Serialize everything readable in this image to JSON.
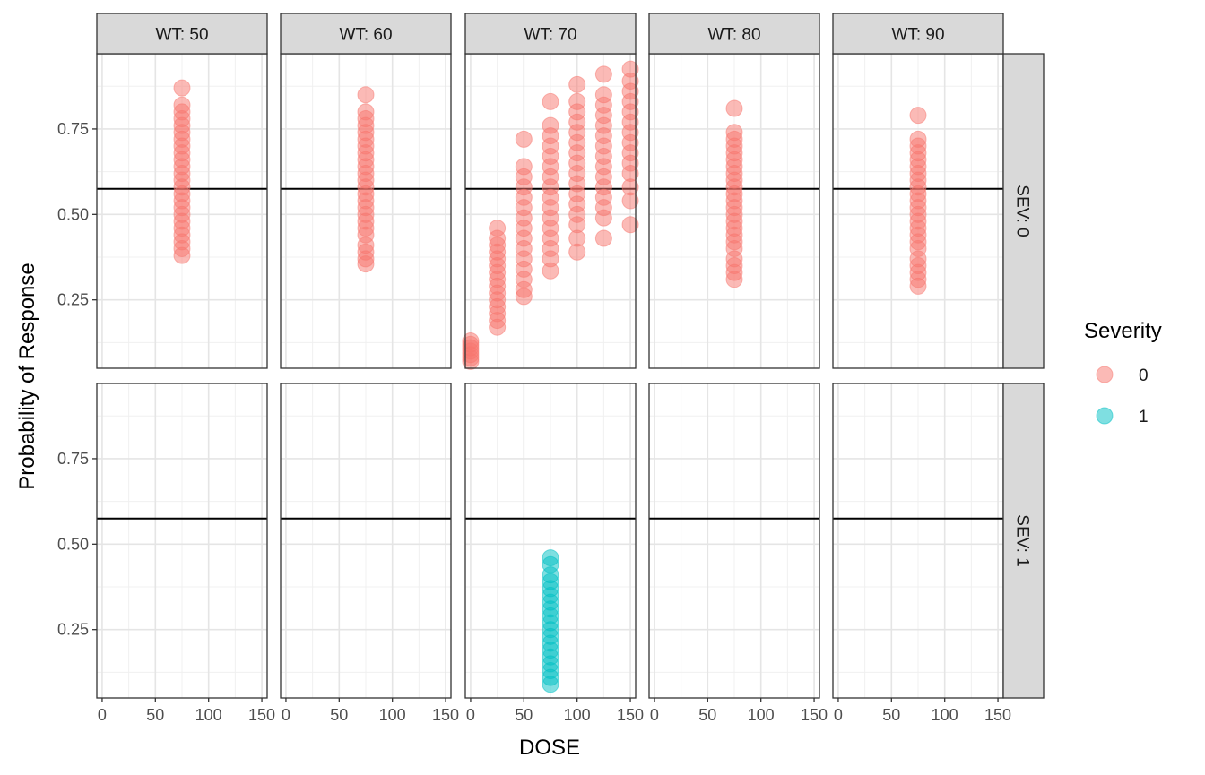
{
  "chart_data": {
    "type": "scatter",
    "xlabel": "DOSE",
    "ylabel": "Probability of Response",
    "xlim": [
      -5,
      155
    ],
    "ylim": [
      0.05,
      0.97
    ],
    "x_ticks": [
      0,
      50,
      100,
      150
    ],
    "x_tick_labels": [
      "0",
      "50",
      "100",
      "150"
    ],
    "y_ticks": [
      0.25,
      0.5,
      0.75
    ],
    "y_tick_labels": [
      "0.25",
      "0.50",
      "0.75"
    ],
    "reference_line_y": 0.575,
    "grid": true,
    "facet_cols": [
      "WT: 50",
      "WT: 60",
      "WT: 70",
      "WT: 80",
      "WT: 90"
    ],
    "facet_rows": [
      "SEV: 0",
      "SEV: 1"
    ],
    "legend": {
      "title": "Severity",
      "position": "right",
      "items": [
        {
          "label": "0",
          "color": "#F8766D"
        },
        {
          "label": "1",
          "color": "#00BFC4"
        }
      ]
    },
    "series": [
      {
        "row": 0,
        "col": 0,
        "severity": "0",
        "x": 75,
        "y": [
          0.38,
          0.4,
          0.42,
          0.44,
          0.46,
          0.48,
          0.5,
          0.52,
          0.54,
          0.56,
          0.58,
          0.6,
          0.62,
          0.64,
          0.66,
          0.68,
          0.7,
          0.72,
          0.74,
          0.76,
          0.78,
          0.8,
          0.82,
          0.87
        ]
      },
      {
        "row": 0,
        "col": 1,
        "severity": "0",
        "x": 75,
        "y": [
          0.355,
          0.37,
          0.39,
          0.41,
          0.44,
          0.46,
          0.48,
          0.5,
          0.52,
          0.54,
          0.56,
          0.58,
          0.6,
          0.62,
          0.64,
          0.66,
          0.68,
          0.7,
          0.72,
          0.74,
          0.76,
          0.78,
          0.8,
          0.85
        ]
      },
      {
        "row": 0,
        "col": 2,
        "severity": "0",
        "x": 0,
        "y": [
          0.07,
          0.08,
          0.09,
          0.1,
          0.11,
          0.12,
          0.13
        ]
      },
      {
        "row": 0,
        "col": 2,
        "severity": "0",
        "x": 25,
        "y": [
          0.17,
          0.19,
          0.21,
          0.23,
          0.25,
          0.27,
          0.29,
          0.31,
          0.33,
          0.35,
          0.37,
          0.39,
          0.41,
          0.43,
          0.46
        ]
      },
      {
        "row": 0,
        "col": 2,
        "severity": "0",
        "x": 50,
        "y": [
          0.26,
          0.28,
          0.31,
          0.34,
          0.37,
          0.4,
          0.43,
          0.46,
          0.49,
          0.52,
          0.55,
          0.58,
          0.61,
          0.64,
          0.72
        ]
      },
      {
        "row": 0,
        "col": 2,
        "severity": "0",
        "x": 75,
        "y": [
          0.335,
          0.37,
          0.4,
          0.43,
          0.46,
          0.49,
          0.52,
          0.55,
          0.58,
          0.61,
          0.64,
          0.67,
          0.7,
          0.73,
          0.76,
          0.83
        ]
      },
      {
        "row": 0,
        "col": 2,
        "severity": "0",
        "x": 100,
        "y": [
          0.39,
          0.43,
          0.47,
          0.5,
          0.53,
          0.56,
          0.59,
          0.62,
          0.65,
          0.68,
          0.71,
          0.74,
          0.77,
          0.8,
          0.83,
          0.88
        ]
      },
      {
        "row": 0,
        "col": 2,
        "severity": "0",
        "x": 125,
        "y": [
          0.43,
          0.49,
          0.52,
          0.55,
          0.58,
          0.61,
          0.64,
          0.67,
          0.7,
          0.73,
          0.76,
          0.79,
          0.82,
          0.85,
          0.91
        ]
      },
      {
        "row": 0,
        "col": 2,
        "severity": "0",
        "x": 150,
        "y": [
          0.47,
          0.54,
          0.58,
          0.62,
          0.65,
          0.68,
          0.71,
          0.74,
          0.77,
          0.8,
          0.83,
          0.86,
          0.89,
          0.925
        ]
      },
      {
        "row": 0,
        "col": 3,
        "severity": "0",
        "x": 75,
        "y": [
          0.31,
          0.33,
          0.35,
          0.37,
          0.4,
          0.42,
          0.44,
          0.46,
          0.48,
          0.5,
          0.52,
          0.54,
          0.56,
          0.58,
          0.6,
          0.62,
          0.64,
          0.66,
          0.68,
          0.7,
          0.72,
          0.74,
          0.81
        ]
      },
      {
        "row": 0,
        "col": 4,
        "severity": "0",
        "x": 75,
        "y": [
          0.29,
          0.31,
          0.33,
          0.35,
          0.37,
          0.4,
          0.42,
          0.44,
          0.46,
          0.48,
          0.5,
          0.52,
          0.54,
          0.56,
          0.58,
          0.6,
          0.62,
          0.64,
          0.66,
          0.68,
          0.7,
          0.72,
          0.79
        ]
      },
      {
        "row": 1,
        "col": 2,
        "severity": "1",
        "x": 75,
        "y": [
          0.09,
          0.11,
          0.13,
          0.15,
          0.17,
          0.19,
          0.21,
          0.23,
          0.25,
          0.27,
          0.29,
          0.31,
          0.33,
          0.35,
          0.37,
          0.39,
          0.41,
          0.44,
          0.46
        ]
      }
    ]
  }
}
